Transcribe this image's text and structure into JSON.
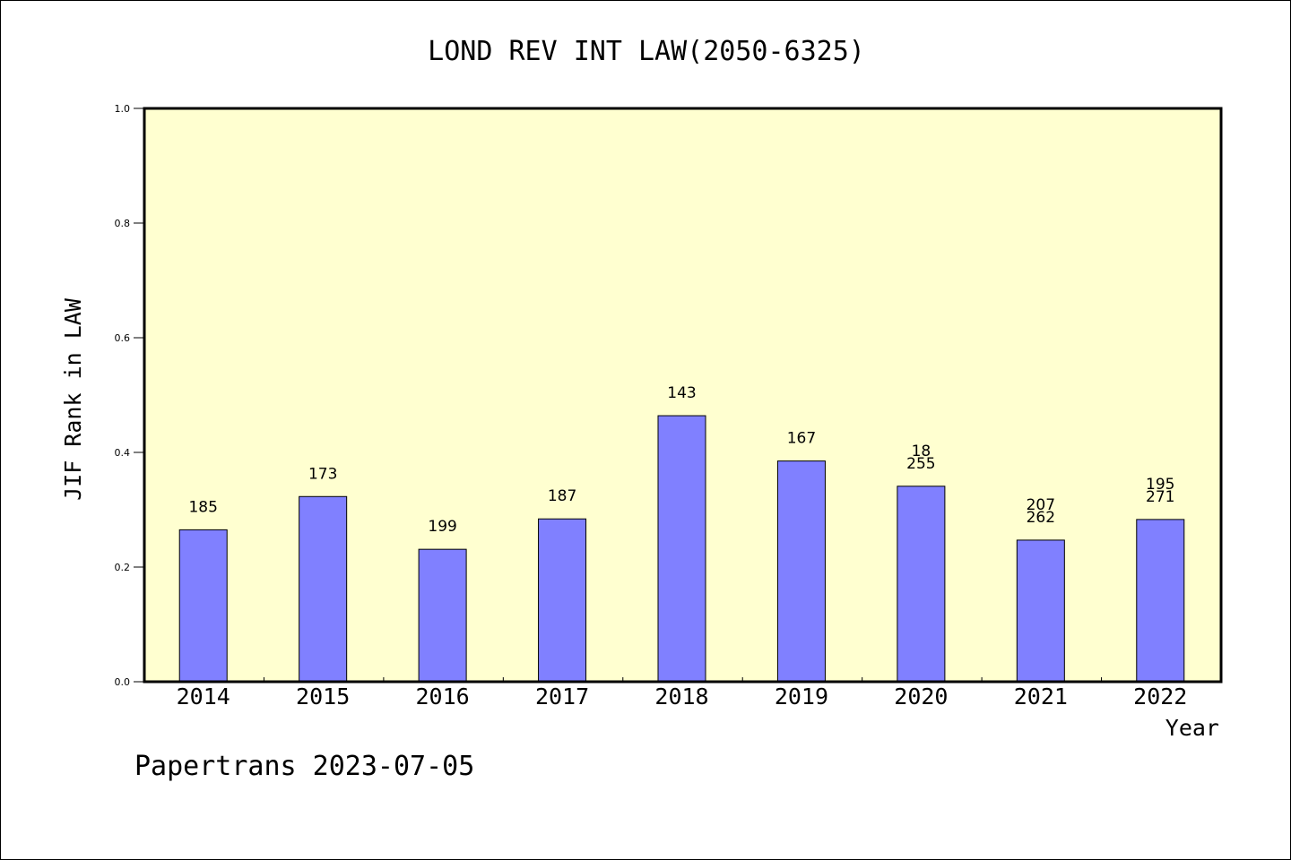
{
  "chart_data": {
    "type": "bar",
    "title": "LOND REV INT LAW(2050-6325)",
    "xlabel": "Year",
    "ylabel": "JIF Rank in LAW",
    "ylim": [
      0.0,
      1.0
    ],
    "yticks": [
      "0.0",
      "0.2",
      "0.4",
      "0.6",
      "0.8",
      "1.0"
    ],
    "categories": [
      "2014",
      "2015",
      "2016",
      "2017",
      "2018",
      "2019",
      "2020",
      "2021",
      "2022"
    ],
    "values": [
      0.265,
      0.323,
      0.231,
      0.284,
      0.464,
      0.385,
      0.341,
      0.247,
      0.283
    ],
    "bar_labels": [
      [
        "185"
      ],
      [
        "173"
      ],
      [
        "199"
      ],
      [
        "187"
      ],
      [
        "143"
      ],
      [
        "167"
      ],
      [
        "18",
        "255"
      ],
      [
        "207",
        "262"
      ],
      [
        "195",
        "271"
      ]
    ],
    "grid": false,
    "colors": {
      "bar": "#8080ff",
      "plot_background": "#ffffd0",
      "axis": "#000000"
    }
  },
  "footer": {
    "watermark": "Papertrans 2023-07-05"
  }
}
